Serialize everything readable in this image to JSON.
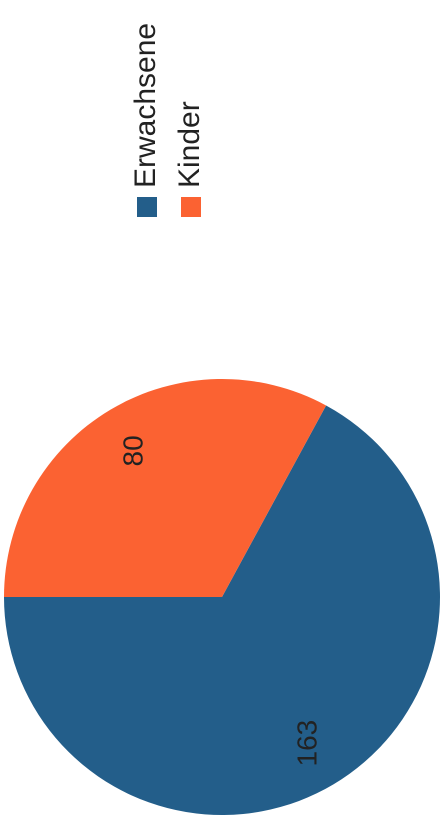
{
  "chart_data": {
    "type": "pie",
    "categories": [
      "Erwachsene",
      "Kinder"
    ],
    "values": [
      163,
      80
    ],
    "colors": [
      "#235e8a",
      "#fb6232"
    ]
  }
}
